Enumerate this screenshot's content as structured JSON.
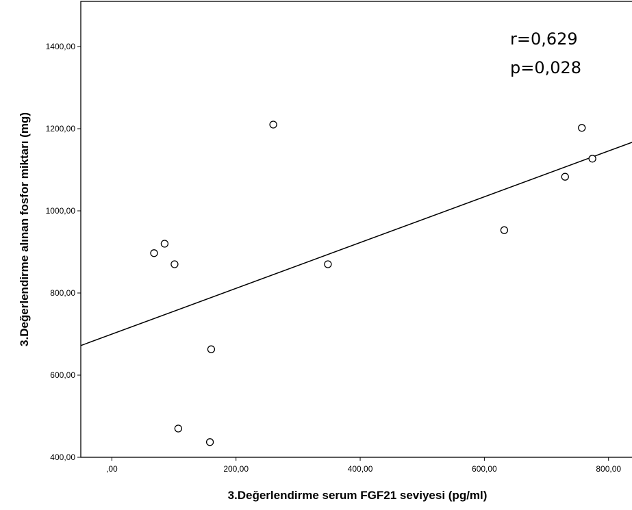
{
  "chart_data": {
    "type": "scatter",
    "title": "",
    "xlabel": "3.Değerlendirme serum FGF21 seviyesi (pg/ml)",
    "ylabel": "3.Değerlendirme alınan fosfor miktarı (mg)",
    "xlim": [
      -50,
      840
    ],
    "ylim": [
      400,
      1510
    ],
    "x_ticks": [
      0,
      200,
      400,
      600,
      800
    ],
    "x_tick_labels": [
      ",00",
      "200,00",
      "400,00",
      "600,00",
      "800,00"
    ],
    "y_ticks": [
      400,
      600,
      800,
      1000,
      1200,
      1400
    ],
    "y_tick_labels": [
      "400,00",
      "600,00",
      "800,00",
      "1000,00",
      "1200,00",
      "1400,00"
    ],
    "grid": false,
    "marker": "open-circle",
    "points": [
      {
        "x": 68,
        "y": 897
      },
      {
        "x": 85,
        "y": 920
      },
      {
        "x": 101,
        "y": 870
      },
      {
        "x": 107,
        "y": 470
      },
      {
        "x": 158,
        "y": 437
      },
      {
        "x": 160,
        "y": 663
      },
      {
        "x": 260,
        "y": 1210
      },
      {
        "x": 348,
        "y": 870
      },
      {
        "x": 632,
        "y": 953
      },
      {
        "x": 730,
        "y": 1083
      },
      {
        "x": 757,
        "y": 1202
      },
      {
        "x": 774,
        "y": 1127
      }
    ],
    "fit_line": {
      "x0": -50,
      "y0": 672,
      "x1": 840,
      "y1": 1168
    },
    "annotations": [
      "r=0,629",
      "p=0,028"
    ]
  }
}
